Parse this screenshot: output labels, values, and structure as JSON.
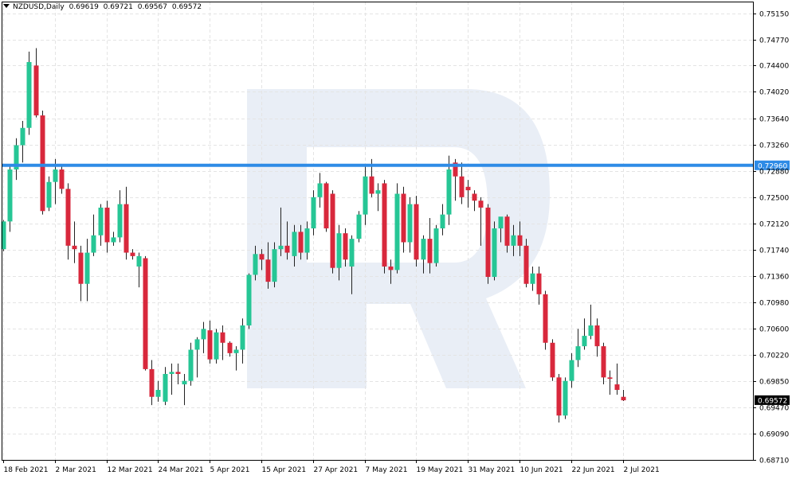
{
  "header": {
    "symbol": "NZDUSD,Daily",
    "open": "0.69619",
    "high": "0.69721",
    "low": "0.69567",
    "close": "0.69572"
  },
  "colors": {
    "bull": "#26c695",
    "bear": "#d8283c",
    "wick": "#222222",
    "grid": "#e4e4e4",
    "level_line": "#2e8be6",
    "axis": "#000000",
    "watermark": "#e9eef6"
  },
  "chart_data": {
    "type": "candlestick",
    "y_axis": {
      "min": 0.6871,
      "max": 0.7515,
      "position": "right",
      "tick_labels": [
        "0.75150",
        "0.74770",
        "0.74400",
        "0.74020",
        "0.73640",
        "0.73260",
        "0.72880",
        "0.72500",
        "0.72120",
        "0.71740",
        "0.71360",
        "0.70980",
        "0.70600",
        "0.70220",
        "0.69850",
        "0.69470",
        "0.69090",
        "0.68710"
      ]
    },
    "x_axis": {
      "date_labels": [
        {
          "label": "18 Feb 2021",
          "index": 0
        },
        {
          "label": "2 Mar 2021",
          "index": 8
        },
        {
          "label": "12 Mar 2021",
          "index": 16
        },
        {
          "label": "24 Mar 2021",
          "index": 24
        },
        {
          "label": "5 Apr 2021",
          "index": 32
        },
        {
          "label": "15 Apr 2021",
          "index": 40
        },
        {
          "label": "27 Apr 2021",
          "index": 48
        },
        {
          "label": "7 May 2021",
          "index": 56
        },
        {
          "label": "19 May 2021",
          "index": 64
        },
        {
          "label": "31 May 2021",
          "index": 72
        },
        {
          "label": "10 Jun 2021",
          "index": 80
        },
        {
          "label": "22 Jun 2021",
          "index": 88
        },
        {
          "label": "2 Jul 2021",
          "index": 96
        }
      ]
    },
    "grid": true,
    "horizontal_level": {
      "value": 0.7296,
      "label": "0.72960"
    },
    "current_price": {
      "value": 0.69572,
      "label": "0.69572"
    },
    "candles": [
      [
        0.7175,
        0.7217,
        0.7172,
        0.7215
      ],
      [
        0.7215,
        0.7295,
        0.72,
        0.729
      ],
      [
        0.729,
        0.7335,
        0.7275,
        0.7325
      ],
      [
        0.7325,
        0.736,
        0.73,
        0.735
      ],
      [
        0.735,
        0.746,
        0.734,
        0.7445
      ],
      [
        0.744,
        0.7465,
        0.7365,
        0.7368
      ],
      [
        0.7368,
        0.7375,
        0.7225,
        0.723
      ],
      [
        0.7235,
        0.728,
        0.723,
        0.7272
      ],
      [
        0.7272,
        0.7305,
        0.724,
        0.729
      ],
      [
        0.729,
        0.7298,
        0.7255,
        0.7262
      ],
      [
        0.7262,
        0.727,
        0.716,
        0.718
      ],
      [
        0.718,
        0.7215,
        0.7155,
        0.7175
      ],
      [
        0.717,
        0.718,
        0.71,
        0.7125
      ],
      [
        0.7125,
        0.719,
        0.71,
        0.717
      ],
      [
        0.717,
        0.7225,
        0.7165,
        0.7195
      ],
      [
        0.7195,
        0.724,
        0.718,
        0.7235
      ],
      [
        0.7235,
        0.7245,
        0.717,
        0.7185
      ],
      [
        0.7185,
        0.72,
        0.718,
        0.7192
      ],
      [
        0.7192,
        0.726,
        0.7185,
        0.724
      ],
      [
        0.724,
        0.7265,
        0.716,
        0.717
      ],
      [
        0.717,
        0.7175,
        0.716,
        0.7165
      ],
      [
        0.715,
        0.717,
        0.712,
        0.7165
      ],
      [
        0.7162,
        0.7165,
        0.7,
        0.7002
      ],
      [
        0.7002,
        0.7015,
        0.695,
        0.6962
      ],
      [
        0.6962,
        0.6985,
        0.6955,
        0.6972
      ],
      [
        0.6955,
        0.7005,
        0.695,
        0.6995
      ],
      [
        0.6995,
        0.701,
        0.6965,
        0.6998
      ],
      [
        0.6998,
        0.701,
        0.698,
        0.6995
      ],
      [
        0.698,
        0.6995,
        0.695,
        0.6985
      ],
      [
        0.6985,
        0.704,
        0.6978,
        0.703
      ],
      [
        0.703,
        0.7048,
        0.699,
        0.7045
      ],
      [
        0.7045,
        0.707,
        0.7025,
        0.706
      ],
      [
        0.7058,
        0.7072,
        0.701,
        0.7016
      ],
      [
        0.7016,
        0.706,
        0.701,
        0.7055
      ],
      [
        0.7055,
        0.7065,
        0.7015,
        0.704
      ],
      [
        0.704,
        0.7042,
        0.702,
        0.7025
      ],
      [
        0.7025,
        0.7035,
        0.7,
        0.703
      ],
      [
        0.703,
        0.7075,
        0.701,
        0.7065
      ],
      [
        0.7065,
        0.714,
        0.706,
        0.7138
      ],
      [
        0.7138,
        0.718,
        0.713,
        0.7168
      ],
      [
        0.7168,
        0.7175,
        0.7145,
        0.716
      ],
      [
        0.716,
        0.7185,
        0.7118,
        0.7128
      ],
      [
        0.7128,
        0.7185,
        0.712,
        0.7175
      ],
      [
        0.7175,
        0.7235,
        0.7165,
        0.718
      ],
      [
        0.718,
        0.7215,
        0.716,
        0.717
      ],
      [
        0.7165,
        0.721,
        0.715,
        0.72
      ],
      [
        0.72,
        0.721,
        0.716,
        0.717
      ],
      [
        0.717,
        0.7215,
        0.716,
        0.7205
      ],
      [
        0.7205,
        0.726,
        0.7195,
        0.725
      ],
      [
        0.725,
        0.7285,
        0.7235,
        0.727
      ],
      [
        0.727,
        0.7272,
        0.72,
        0.7205
      ],
      [
        0.7255,
        0.726,
        0.714,
        0.7148
      ],
      [
        0.7148,
        0.721,
        0.713,
        0.7198
      ],
      [
        0.7198,
        0.7205,
        0.715,
        0.716
      ],
      [
        0.715,
        0.7195,
        0.711,
        0.719
      ],
      [
        0.719,
        0.723,
        0.7185,
        0.7225
      ],
      [
        0.7225,
        0.7295,
        0.721,
        0.728
      ],
      [
        0.728,
        0.7305,
        0.725,
        0.7255
      ],
      [
        0.7255,
        0.727,
        0.723,
        0.726
      ],
      [
        0.727,
        0.7275,
        0.714,
        0.715
      ],
      [
        0.715,
        0.716,
        0.7125,
        0.7145
      ],
      [
        0.7145,
        0.727,
        0.714,
        0.7255
      ],
      [
        0.7255,
        0.7265,
        0.717,
        0.7185
      ],
      [
        0.7185,
        0.725,
        0.717,
        0.724
      ],
      [
        0.724,
        0.7252,
        0.715,
        0.716
      ],
      [
        0.716,
        0.7195,
        0.714,
        0.719
      ],
      [
        0.719,
        0.722,
        0.714,
        0.7155
      ],
      [
        0.7155,
        0.721,
        0.715,
        0.7205
      ],
      [
        0.7205,
        0.724,
        0.7195,
        0.7225
      ],
      [
        0.7225,
        0.731,
        0.721,
        0.729
      ],
      [
        0.73,
        0.7305,
        0.7245,
        0.728
      ],
      [
        0.728,
        0.73,
        0.724,
        0.725
      ],
      [
        0.7265,
        0.7275,
        0.7235,
        0.726
      ],
      [
        0.7255,
        0.726,
        0.723,
        0.7245
      ],
      [
        0.7245,
        0.725,
        0.718,
        0.7235
      ],
      [
        0.7235,
        0.724,
        0.7125,
        0.7135
      ],
      [
        0.7135,
        0.7215,
        0.713,
        0.7205
      ],
      [
        0.7205,
        0.722,
        0.7185,
        0.7222
      ],
      [
        0.7222,
        0.7225,
        0.717,
        0.718
      ],
      [
        0.718,
        0.721,
        0.7165,
        0.7195
      ],
      [
        0.7195,
        0.7215,
        0.7165,
        0.718
      ],
      [
        0.718,
        0.719,
        0.712,
        0.7125
      ],
      [
        0.7125,
        0.715,
        0.7115,
        0.714
      ],
      [
        0.714,
        0.715,
        0.7095,
        0.711
      ],
      [
        0.711,
        0.7115,
        0.703,
        0.704
      ],
      [
        0.704,
        0.7045,
        0.6985,
        0.699
      ],
      [
        0.699,
        0.6995,
        0.6925,
        0.6935
      ],
      [
        0.6935,
        0.699,
        0.693,
        0.6985
      ],
      [
        0.6985,
        0.7025,
        0.6975,
        0.7015
      ],
      [
        0.7015,
        0.706,
        0.7005,
        0.7035
      ],
      [
        0.7035,
        0.7075,
        0.703,
        0.705
      ],
      [
        0.705,
        0.7095,
        0.7045,
        0.7065
      ],
      [
        0.7065,
        0.7075,
        0.702,
        0.7035
      ],
      [
        0.7035,
        0.704,
        0.698,
        0.699
      ],
      [
        0.699,
        0.7,
        0.6965,
        0.6988
      ],
      [
        0.698,
        0.701,
        0.6965,
        0.6972
      ],
      [
        0.6962,
        0.6972,
        0.6956,
        0.6957
      ]
    ]
  }
}
